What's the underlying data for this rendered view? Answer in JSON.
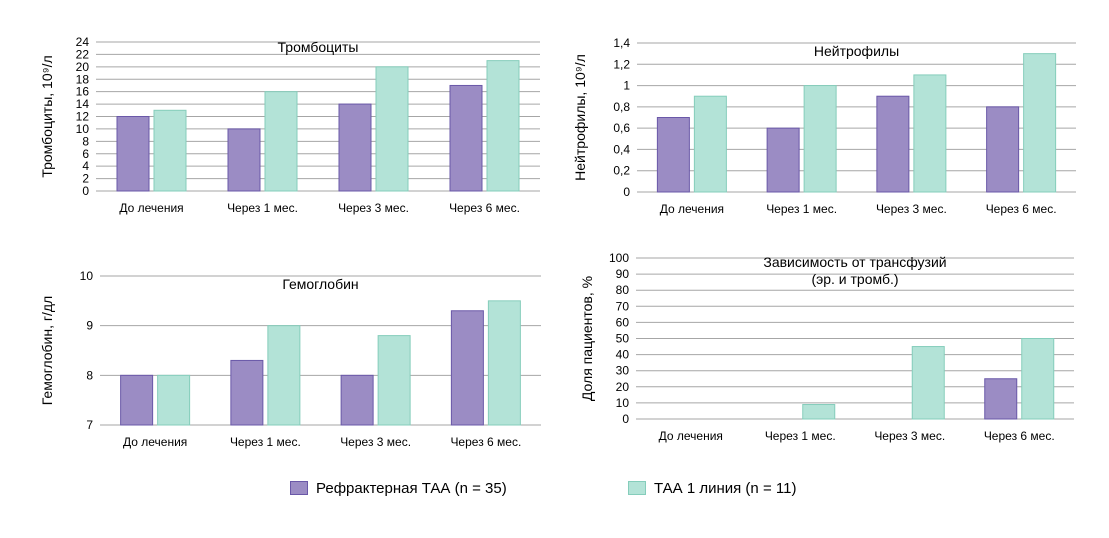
{
  "colors": {
    "series1": "#9b8cc4",
    "series1_border": "#6a58a8",
    "series2": "#b3e3d7",
    "series2_border": "#85cdbb",
    "grid": "#a6a6a6"
  },
  "legend": {
    "items": [
      {
        "label": "Рефрактерная ТАА (n = 35)"
      },
      {
        "label": "ТАА 1 линия (n = 11)"
      }
    ]
  },
  "chart_data": [
    {
      "type": "bar",
      "title": "Тромбоциты",
      "ylabel": "Тромбоциты, 10⁹/л",
      "categories": [
        "До лечения",
        "Через 1 мес.",
        "Через 3 мес.",
        "Через 6 мес."
      ],
      "ylim": [
        0,
        24
      ],
      "yticks": [
        0,
        2,
        4,
        6,
        8,
        10,
        12,
        14,
        16,
        18,
        20,
        22,
        24
      ],
      "ytick_labels": [
        "0",
        "2",
        "4",
        "6",
        "8",
        "10",
        "12",
        "14",
        "16",
        "18",
        "20",
        "22",
        "24"
      ],
      "grid": true,
      "series": [
        {
          "name": "Рефрактерная ТАА (n = 35)",
          "values": [
            12,
            10,
            14,
            17
          ]
        },
        {
          "name": "ТАА 1 линия (n = 11)",
          "values": [
            13,
            16,
            20,
            21
          ]
        }
      ]
    },
    {
      "type": "bar",
      "title": "Нейтрофилы",
      "ylabel": "Нейтрофилы, 10⁹/л",
      "categories": [
        "До лечения",
        "Через 1 мес.",
        "Через 3 мес.",
        "Через 6 мес."
      ],
      "ylim": [
        0,
        1.4
      ],
      "yticks": [
        0,
        0.2,
        0.4,
        0.6,
        0.8,
        1.0,
        1.2,
        1.4
      ],
      "ytick_labels": [
        "0",
        "0,2",
        "0,4",
        "0,6",
        "0,8",
        "1",
        "1,2",
        "1,4"
      ],
      "grid": true,
      "series": [
        {
          "name": "Рефрактерная ТАА (n = 35)",
          "values": [
            0.7,
            0.6,
            0.9,
            0.8
          ]
        },
        {
          "name": "ТАА 1 линия (n = 11)",
          "values": [
            0.9,
            1.0,
            1.1,
            1.3
          ]
        }
      ]
    },
    {
      "type": "bar",
      "title": "Гемоглобин",
      "ylabel": "Гемоглобин, г/дл",
      "categories": [
        "До лечения",
        "Через 1 мес.",
        "Через 3 мес.",
        "Через 6 мес."
      ],
      "ylim": [
        7,
        10
      ],
      "yticks": [
        7,
        8,
        9,
        10
      ],
      "ytick_labels": [
        "7",
        "8",
        "9",
        "10"
      ],
      "grid": true,
      "series": [
        {
          "name": "Рефрактерная ТАА (n = 35)",
          "values": [
            8.0,
            8.3,
            8.0,
            9.3
          ]
        },
        {
          "name": "ТАА 1 линия (n = 11)",
          "values": [
            8.0,
            9.0,
            8.8,
            9.5
          ]
        }
      ]
    },
    {
      "type": "bar",
      "title": "Зависимость от трансфузий\n(эр. и тромб.)",
      "ylabel": "Доля пациентов, %",
      "categories": [
        "До лечения",
        "Через 1 мес.",
        "Через 3 мес.",
        "Через 6 мес."
      ],
      "ylim": [
        0,
        100
      ],
      "yticks": [
        0,
        10,
        20,
        30,
        40,
        50,
        60,
        70,
        80,
        90,
        100
      ],
      "ytick_labels": [
        "0",
        "10",
        "20",
        "30",
        "40",
        "50",
        "60",
        "70",
        "80",
        "90",
        "100"
      ],
      "grid": true,
      "series": [
        {
          "name": "Рефрактерная ТАА (n = 35)",
          "values": [
            0,
            0,
            0,
            25
          ]
        },
        {
          "name": "ТАА 1 линия (n = 11)",
          "values": [
            0,
            9,
            45,
            50
          ]
        }
      ]
    }
  ]
}
